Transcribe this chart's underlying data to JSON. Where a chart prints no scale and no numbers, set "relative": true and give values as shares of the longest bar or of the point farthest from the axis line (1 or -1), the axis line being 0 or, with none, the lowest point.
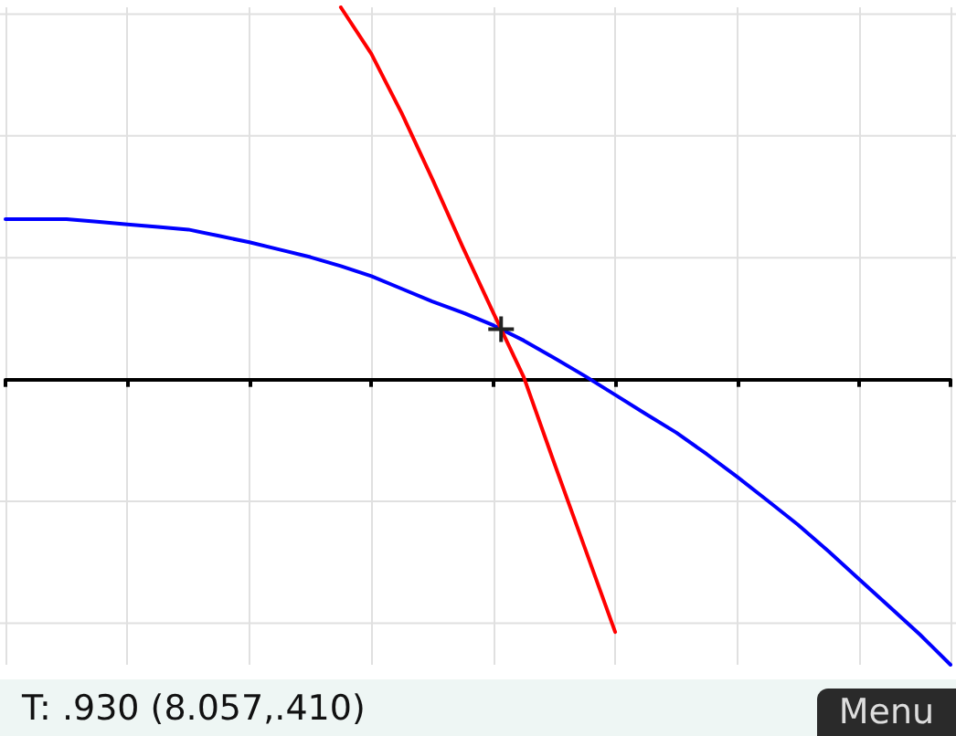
{
  "chart_data": {
    "type": "line",
    "relative": true,
    "grid": true,
    "marker": "none",
    "categories": [
      null,
      null,
      null,
      null,
      null,
      null,
      null,
      null,
      null,
      null,
      null,
      null,
      null,
      null,
      null,
      null,
      null,
      null,
      null,
      null,
      null,
      null,
      null,
      null,
      null,
      null,
      null,
      null,
      null,
      null,
      null,
      null
    ],
    "series": [
      {
        "color": "#0000ff",
        "values": [
          0.431,
          0.431,
          0.431,
          0.424,
          0.417,
          0.41,
          0.403,
          0.386,
          0.369,
          0.349,
          0.329,
          0.305,
          0.278,
          0.244,
          0.21,
          0.18,
          0.146,
          0.105,
          0.058,
          0.01,
          -0.041,
          -0.092,
          -0.142,
          -0.2,
          -0.261,
          -0.325,
          -0.39,
          -0.461,
          -0.536,
          -0.61,
          -0.685,
          -0.766
        ]
      },
      {
        "color": "#ff0000",
        "values": [
          null,
          null,
          null,
          null,
          null,
          null,
          null,
          null,
          null,
          null,
          null,
          1,
          0.875,
          0.715,
          0.539,
          0.356,
          0.18,
          0.007,
          -0.224,
          -0.451,
          -0.678,
          null,
          null,
          null,
          null,
          null,
          null,
          null,
          null,
          null,
          null,
          null
        ]
      }
    ],
    "annotations": [
      "T: .930 (8.057,.410)",
      "Menu"
    ]
  }
}
